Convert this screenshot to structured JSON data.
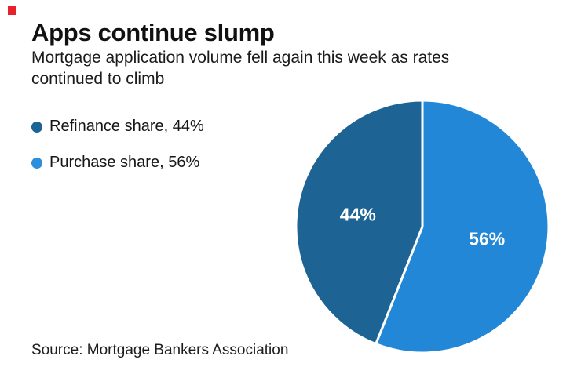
{
  "brand": {
    "mark_color": "#e8222c"
  },
  "header": {
    "title": "Apps continue slump",
    "subtitle_line1": "Mortgage application volume fell again this week as rates",
    "subtitle_line2": "continued to climb"
  },
  "legend": {
    "items": [
      {
        "label": "Refinance share, 44%",
        "color": "#1d6395"
      },
      {
        "label": "Purchase share, 56%",
        "color": "#2b8fdb"
      }
    ]
  },
  "chart_data": {
    "type": "pie",
    "title": "Apps continue slump",
    "subtitle": "Mortgage application volume fell again this week as rates continued to climb",
    "slices": [
      {
        "id": "refinance",
        "label": "Refinance share",
        "value": 44,
        "data_label": "44%",
        "color": "#1d6394"
      },
      {
        "id": "purchase",
        "label": "Purchase share",
        "value": 56,
        "data_label": "56%",
        "color": "#2187d6"
      }
    ],
    "start_angle_deg": 0,
    "direction": "clockwise",
    "first_data_slice_side": "left",
    "slice_border_color": "#ffffff",
    "data_label_color": "#ffffff",
    "legend_position": "upper-left",
    "grid": false,
    "source": "Source: Mortgage Bankers Association"
  },
  "footer": {
    "source": "Source: Mortgage Bankers Association"
  }
}
